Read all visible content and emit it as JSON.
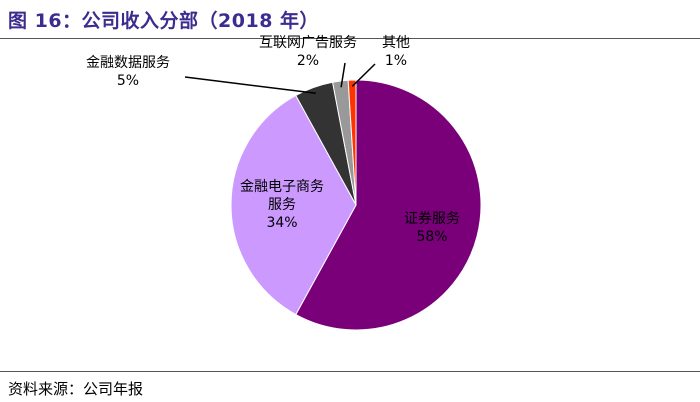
{
  "title": "图 16：公司收入分部（2018 年）",
  "source": "资料来源：公司年报",
  "chart_data": {
    "type": "pie",
    "title": "公司收入分部（2018 年）",
    "slices": [
      {
        "name": "证券服务",
        "label_lines": [
          "证券服务"
        ],
        "value": 58,
        "value_label": "58%",
        "color": "#7a007a",
        "label_color": "#ffffff"
      },
      {
        "name": "金融电子商务服务",
        "label_lines": [
          "金融电子商务",
          "服务"
        ],
        "value": 34,
        "value_label": "34%",
        "color": "#cc99ff",
        "label_color": "#000000"
      },
      {
        "name": "金融数据服务",
        "label_lines": [
          "金融数据服务"
        ],
        "value": 5,
        "value_label": "5%",
        "color": "#333333",
        "label_color": "#000000"
      },
      {
        "name": "互联网广告服务",
        "label_lines": [
          "互联网广告服务"
        ],
        "value": 2,
        "value_label": "2%",
        "color": "#999999",
        "label_color": "#000000"
      },
      {
        "name": "其他",
        "label_lines": [
          "其他"
        ],
        "value": 1,
        "value_label": "1%",
        "color": "#ff3300",
        "label_color": "#000000"
      }
    ]
  }
}
